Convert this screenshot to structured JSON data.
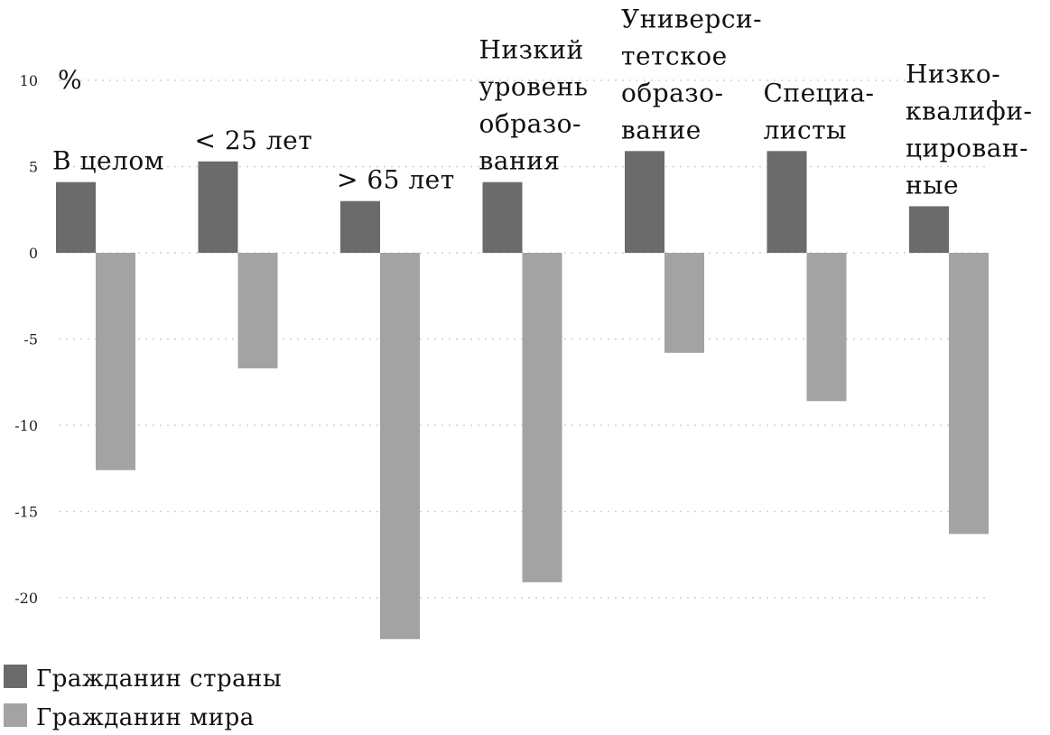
{
  "chart_data": {
    "type": "bar",
    "unit_label": "%",
    "ylim": [
      -22.5,
      10
    ],
    "yticks": [
      10,
      5,
      0,
      -5,
      -10,
      -15,
      -20
    ],
    "ytick_labels": [
      "10",
      "5",
      "0",
      "-5",
      "-10",
      "-15",
      "-20"
    ],
    "grid": true,
    "legend_position": "bottom-left",
    "categories": [
      "В целом",
      "< 25 лет",
      "> 65 лет",
      "Низкий уровень образования",
      "Университетское образование",
      "Специалисты",
      "Низкоквалифицированные"
    ],
    "category_label_lines": [
      [
        "В целом"
      ],
      [
        "< 25 лет"
      ],
      [
        "> 65 лет"
      ],
      [
        "Низкий",
        "уровень",
        "образо-",
        "вания"
      ],
      [
        "Универси-",
        "тетское",
        "образо-",
        "вание"
      ],
      [
        "Специа-",
        "листы"
      ],
      [
        "Низко-",
        "квалифи-",
        "цирован-",
        "ные"
      ]
    ],
    "series": [
      {
        "name": "Гражданин страны",
        "color": "#6b6b6b",
        "values": [
          4.1,
          5.3,
          3.0,
          4.1,
          5.9,
          5.9,
          2.7
        ]
      },
      {
        "name": "Гражданин мира",
        "color": "#a3a3a3",
        "values": [
          -12.6,
          -6.7,
          -22.4,
          -19.1,
          -5.8,
          -8.6,
          -16.3
        ]
      }
    ]
  }
}
